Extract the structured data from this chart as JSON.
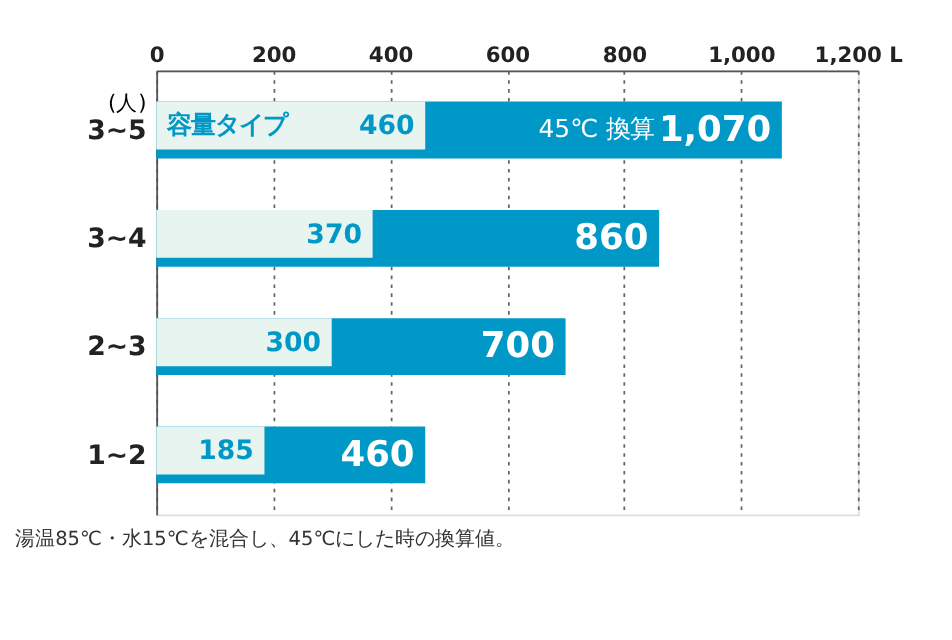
{
  "chart_data": {
    "type": "bar",
    "orientation": "horizontal",
    "categories": [
      "3~5",
      "3~4",
      "2~3",
      "1~2"
    ],
    "series": [
      {
        "name": "45℃ 換算",
        "color": "#0098c6",
        "values": [
          1070,
          860,
          700,
          460
        ],
        "value_labels": [
          "1,070",
          "860",
          "700",
          "460"
        ]
      },
      {
        "name": "容量タイプ",
        "color": "#e8f4ef",
        "values": [
          460,
          370,
          300,
          185
        ],
        "value_labels": [
          "460",
          "370",
          "300",
          "185"
        ]
      }
    ],
    "xlim": [
      0,
      1200
    ],
    "xticks": [
      0,
      200,
      400,
      600,
      800,
      {
        "value": 1000,
        "label": "1,000"
      },
      {
        "value": 1200,
        "label": "1,200 L"
      }
    ],
    "ylabel": "(人)",
    "grid": "x",
    "annotations": [
      "湯温85℃・水15℃を混合し、45℃にした時の換算値。"
    ]
  }
}
